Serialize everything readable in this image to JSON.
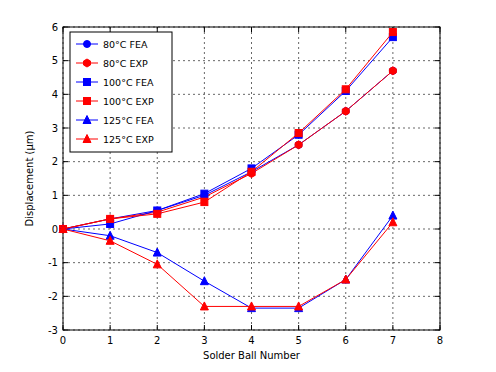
{
  "chart_data": {
    "type": "line",
    "x_label": "Solder Ball Number",
    "y_label": "Displacement (μm)",
    "x": [
      0,
      1,
      2,
      3,
      4,
      5,
      6,
      7
    ],
    "xlim": [
      0,
      8
    ],
    "xticks": [
      0,
      1,
      2,
      3,
      4,
      5,
      6,
      7,
      8
    ],
    "ylim": [
      -3,
      6
    ],
    "yticks": [
      -3,
      -2,
      -1,
      0,
      1,
      2,
      3,
      4,
      5,
      6
    ],
    "grid": true,
    "legend": "upper left",
    "series": [
      {
        "name": "80°C FEA",
        "color": "#0000ff",
        "marker": "circle",
        "values": [
          0,
          0.3,
          0.55,
          1.0,
          1.7,
          2.5,
          3.5,
          4.7
        ]
      },
      {
        "name": "80°C EXP",
        "color": "#ff0000",
        "marker": "hexagon",
        "values": [
          0,
          0.3,
          0.5,
          0.95,
          1.65,
          2.5,
          3.5,
          4.7
        ]
      },
      {
        "name": "100°C FEA",
        "color": "#0000ff",
        "marker": "square",
        "values": [
          0,
          0.15,
          0.55,
          1.05,
          1.8,
          2.8,
          4.1,
          5.7
        ]
      },
      {
        "name": "100°C EXP",
        "color": "#ff0000",
        "marker": "square",
        "values": [
          0,
          0.3,
          0.45,
          0.8,
          1.7,
          2.85,
          4.15,
          5.85
        ]
      },
      {
        "name": "125°C FEA",
        "color": "#0000ff",
        "marker": "triangle",
        "values": [
          0,
          -0.2,
          -0.7,
          -1.55,
          -2.35,
          -2.35,
          -1.5,
          0.4
        ]
      },
      {
        "name": "125°C EXP",
        "color": "#ff0000",
        "marker": "triangle",
        "values": [
          0,
          -0.35,
          -1.05,
          -2.3,
          -2.3,
          -2.3,
          -1.5,
          0.2
        ]
      }
    ]
  }
}
